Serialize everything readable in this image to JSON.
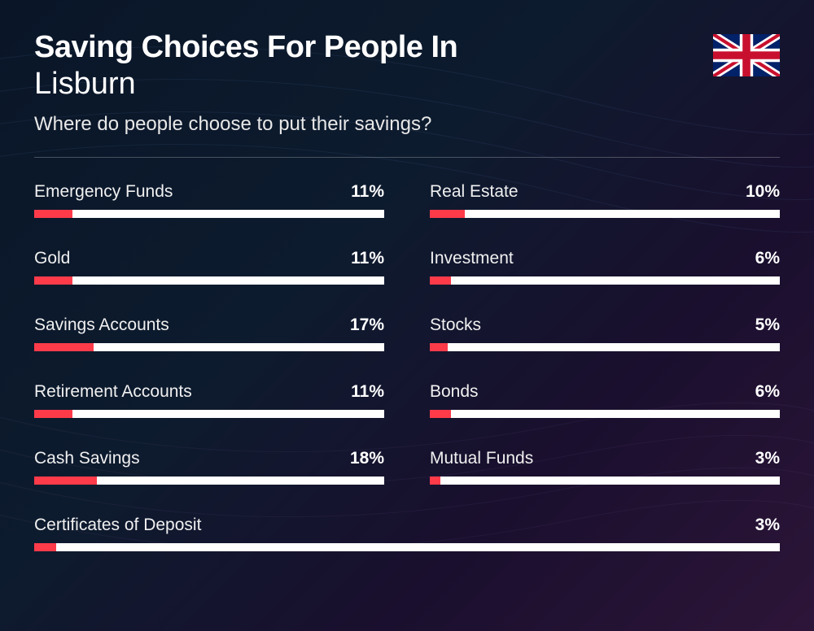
{
  "title_line1": "Saving Choices For People In",
  "title_line2": "Lisburn",
  "subtitle": "Where do people choose to put their savings?",
  "colors": {
    "bar_fill": "#ff3b4a",
    "bar_track": "#ffffff",
    "text": "#ffffff"
  },
  "chart": {
    "type": "bar",
    "max_percent": 100,
    "items": [
      {
        "label": "Emergency Funds",
        "value": 11,
        "display": "11%"
      },
      {
        "label": "Real Estate",
        "value": 10,
        "display": "10%"
      },
      {
        "label": "Gold",
        "value": 11,
        "display": "11%"
      },
      {
        "label": "Investment",
        "value": 6,
        "display": "6%"
      },
      {
        "label": "Savings Accounts",
        "value": 17,
        "display": "17%"
      },
      {
        "label": "Stocks",
        "value": 5,
        "display": "5%"
      },
      {
        "label": "Retirement Accounts",
        "value": 11,
        "display": "11%"
      },
      {
        "label": "Bonds",
        "value": 6,
        "display": "6%"
      },
      {
        "label": "Cash Savings",
        "value": 18,
        "display": "18%"
      },
      {
        "label": "Mutual Funds",
        "value": 3,
        "display": "3%"
      }
    ],
    "full_width_item": {
      "label": "Certificates of Deposit",
      "value": 3,
      "display": "3%"
    }
  }
}
